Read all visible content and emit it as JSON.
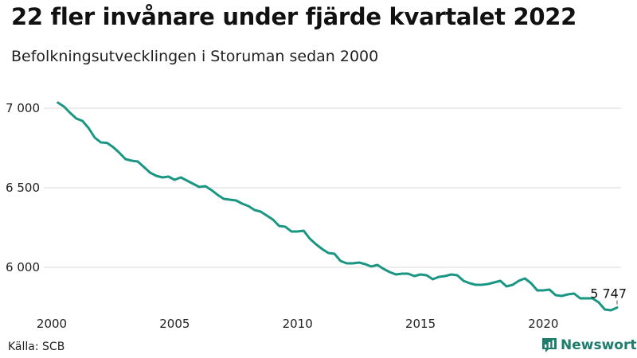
{
  "title": "22 fler invånare under fjärde kvartalet 2022",
  "subtitle": "Befolkningsutvecklingen i Storuman sedan 2000",
  "source": "Källa: SCB",
  "brand": "Newsworthy",
  "line_color": "#1a9683",
  "brand_color": "#1f7d6e",
  "chart_data": {
    "type": "line",
    "title": "22 fler invånare under fjärde kvartalet 2022",
    "subtitle": "Befolkningsutvecklingen i Storuman sedan 2000",
    "xlabel": "",
    "ylabel": "",
    "x_ticks": [
      2000,
      2005,
      2010,
      2015,
      2020
    ],
    "x_tick_labels": [
      "2000",
      "2005",
      "2010",
      "2015",
      "2020"
    ],
    "y_ticks": [
      6000,
      6500,
      7000
    ],
    "y_tick_labels": [
      "6 000",
      "6 500",
      "7 000"
    ],
    "xlim": [
      2000,
      2023
    ],
    "ylim": [
      5720,
      7080
    ],
    "grid": true,
    "end_label": "5 747",
    "series": [
      {
        "values": [
          {
            "x": 2000.25,
            "y": 7035
          },
          {
            "x": 2000.5,
            "y": 7010
          },
          {
            "x": 2000.75,
            "y": 6970
          },
          {
            "x": 2001.0,
            "y": 6935
          },
          {
            "x": 2001.25,
            "y": 6920
          },
          {
            "x": 2001.5,
            "y": 6875
          },
          {
            "x": 2001.75,
            "y": 6815
          },
          {
            "x": 2002.0,
            "y": 6785
          },
          {
            "x": 2002.25,
            "y": 6782
          },
          {
            "x": 2002.5,
            "y": 6755
          },
          {
            "x": 2002.75,
            "y": 6720
          },
          {
            "x": 2003.0,
            "y": 6680
          },
          {
            "x": 2003.25,
            "y": 6670
          },
          {
            "x": 2003.5,
            "y": 6665
          },
          {
            "x": 2003.75,
            "y": 6630
          },
          {
            "x": 2004.0,
            "y": 6595
          },
          {
            "x": 2004.25,
            "y": 6575
          },
          {
            "x": 2004.5,
            "y": 6565
          },
          {
            "x": 2004.75,
            "y": 6570
          },
          {
            "x": 2005.0,
            "y": 6550
          },
          {
            "x": 2005.25,
            "y": 6565
          },
          {
            "x": 2005.5,
            "y": 6545
          },
          {
            "x": 2005.75,
            "y": 6525
          },
          {
            "x": 2006.0,
            "y": 6505
          },
          {
            "x": 2006.25,
            "y": 6510
          },
          {
            "x": 2006.5,
            "y": 6485
          },
          {
            "x": 2006.75,
            "y": 6455
          },
          {
            "x": 2007.0,
            "y": 6430
          },
          {
            "x": 2007.25,
            "y": 6425
          },
          {
            "x": 2007.5,
            "y": 6420
          },
          {
            "x": 2007.75,
            "y": 6400
          },
          {
            "x": 2008.0,
            "y": 6385
          },
          {
            "x": 2008.25,
            "y": 6360
          },
          {
            "x": 2008.5,
            "y": 6350
          },
          {
            "x": 2008.75,
            "y": 6325
          },
          {
            "x": 2009.0,
            "y": 6300
          },
          {
            "x": 2009.25,
            "y": 6260
          },
          {
            "x": 2009.5,
            "y": 6255
          },
          {
            "x": 2009.75,
            "y": 6225
          },
          {
            "x": 2010.0,
            "y": 6225
          },
          {
            "x": 2010.25,
            "y": 6230
          },
          {
            "x": 2010.5,
            "y": 6180
          },
          {
            "x": 2010.75,
            "y": 6145
          },
          {
            "x": 2011.0,
            "y": 6115
          },
          {
            "x": 2011.25,
            "y": 6090
          },
          {
            "x": 2011.5,
            "y": 6085
          },
          {
            "x": 2011.75,
            "y": 6040
          },
          {
            "x": 2012.0,
            "y": 6025
          },
          {
            "x": 2012.25,
            "y": 6025
          },
          {
            "x": 2012.5,
            "y": 6030
          },
          {
            "x": 2012.75,
            "y": 6020
          },
          {
            "x": 2013.0,
            "y": 6005
          },
          {
            "x": 2013.25,
            "y": 6015
          },
          {
            "x": 2013.5,
            "y": 5990
          },
          {
            "x": 2013.75,
            "y": 5970
          },
          {
            "x": 2014.0,
            "y": 5955
          },
          {
            "x": 2014.25,
            "y": 5960
          },
          {
            "x": 2014.5,
            "y": 5960
          },
          {
            "x": 2014.75,
            "y": 5945
          },
          {
            "x": 2015.0,
            "y": 5955
          },
          {
            "x": 2015.25,
            "y": 5950
          },
          {
            "x": 2015.5,
            "y": 5925
          },
          {
            "x": 2015.75,
            "y": 5940
          },
          {
            "x": 2016.0,
            "y": 5945
          },
          {
            "x": 2016.25,
            "y": 5955
          },
          {
            "x": 2016.5,
            "y": 5950
          },
          {
            "x": 2016.75,
            "y": 5915
          },
          {
            "x": 2017.0,
            "y": 5900
          },
          {
            "x": 2017.25,
            "y": 5890
          },
          {
            "x": 2017.5,
            "y": 5890
          },
          {
            "x": 2017.75,
            "y": 5895
          },
          {
            "x": 2018.0,
            "y": 5905
          },
          {
            "x": 2018.25,
            "y": 5915
          },
          {
            "x": 2018.5,
            "y": 5880
          },
          {
            "x": 2018.75,
            "y": 5890
          },
          {
            "x": 2019.0,
            "y": 5915
          },
          {
            "x": 2019.25,
            "y": 5930
          },
          {
            "x": 2019.5,
            "y": 5900
          },
          {
            "x": 2019.75,
            "y": 5855
          },
          {
            "x": 2020.0,
            "y": 5855
          },
          {
            "x": 2020.25,
            "y": 5860
          },
          {
            "x": 2020.5,
            "y": 5825
          },
          {
            "x": 2020.75,
            "y": 5820
          },
          {
            "x": 2021.0,
            "y": 5830
          },
          {
            "x": 2021.25,
            "y": 5835
          },
          {
            "x": 2021.5,
            "y": 5805
          },
          {
            "x": 2021.75,
            "y": 5805
          },
          {
            "x": 2022.0,
            "y": 5805
          },
          {
            "x": 2022.25,
            "y": 5780
          },
          {
            "x": 2022.5,
            "y": 5735
          },
          {
            "x": 2022.75,
            "y": 5730
          },
          {
            "x": 2023.0,
            "y": 5747
          }
        ]
      }
    ]
  }
}
